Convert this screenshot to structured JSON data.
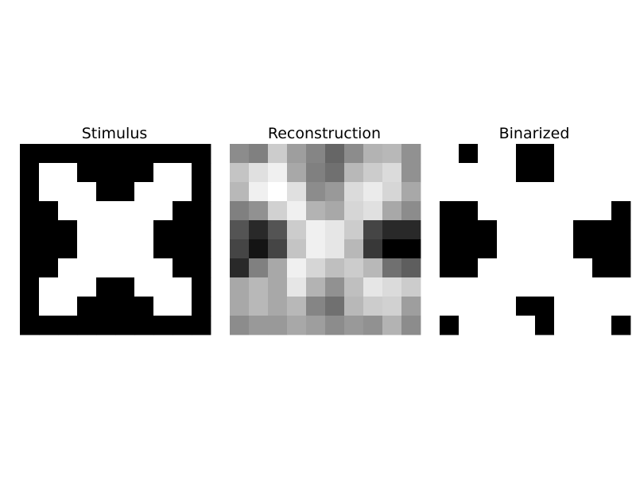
{
  "chart_data": [
    {
      "type": "heatmap",
      "title": "Stimulus",
      "colormap": "gray",
      "value_range": [
        0,
        1
      ],
      "grid": false,
      "axes_visible": false,
      "rows": 10,
      "cols": 10,
      "values": [
        [
          0,
          0,
          0,
          0,
          0,
          0,
          0,
          0,
          0,
          0
        ],
        [
          0,
          1,
          1,
          0,
          0,
          0,
          0,
          1,
          1,
          0
        ],
        [
          0,
          1,
          1,
          1,
          0,
          0,
          1,
          1,
          1,
          0
        ],
        [
          0,
          0,
          1,
          1,
          1,
          1,
          1,
          1,
          0,
          0
        ],
        [
          0,
          0,
          0,
          1,
          1,
          1,
          1,
          0,
          0,
          0
        ],
        [
          0,
          0,
          0,
          1,
          1,
          1,
          1,
          0,
          0,
          0
        ],
        [
          0,
          0,
          1,
          1,
          1,
          1,
          1,
          1,
          0,
          0
        ],
        [
          0,
          1,
          1,
          1,
          0,
          0,
          1,
          1,
          1,
          0
        ],
        [
          0,
          1,
          1,
          0,
          0,
          0,
          0,
          1,
          1,
          0
        ],
        [
          0,
          0,
          0,
          0,
          0,
          0,
          0,
          0,
          0,
          0
        ]
      ]
    },
    {
      "type": "heatmap",
      "title": "Reconstruction",
      "colormap": "gray",
      "value_range": [
        0,
        1
      ],
      "grid": false,
      "axes_visible": false,
      "rows": 10,
      "cols": 10,
      "values": [
        [
          0.55,
          0.5,
          0.8,
          0.62,
          0.52,
          0.4,
          0.55,
          0.7,
          0.72,
          0.57
        ],
        [
          0.77,
          0.88,
          0.94,
          0.66,
          0.5,
          0.44,
          0.72,
          0.8,
          0.86,
          0.57
        ],
        [
          0.72,
          0.94,
          1.0,
          0.88,
          0.55,
          0.6,
          0.86,
          0.92,
          0.84,
          0.66
        ],
        [
          0.5,
          0.57,
          0.82,
          0.94,
          0.7,
          0.66,
          0.84,
          0.88,
          0.66,
          0.55
        ],
        [
          0.33,
          0.16,
          0.33,
          0.8,
          0.94,
          0.9,
          0.8,
          0.27,
          0.16,
          0.16
        ],
        [
          0.27,
          0.08,
          0.27,
          0.77,
          0.94,
          0.9,
          0.72,
          0.22,
          0.0,
          0.0
        ],
        [
          0.16,
          0.5,
          0.66,
          0.94,
          0.84,
          0.75,
          0.8,
          0.72,
          0.44,
          0.37
        ],
        [
          0.66,
          0.72,
          0.66,
          0.9,
          0.7,
          0.57,
          0.75,
          0.9,
          0.86,
          0.8
        ],
        [
          0.66,
          0.72,
          0.66,
          0.72,
          0.52,
          0.44,
          0.72,
          0.8,
          0.82,
          0.62
        ],
        [
          0.55,
          0.6,
          0.6,
          0.66,
          0.62,
          0.55,
          0.6,
          0.57,
          0.7,
          0.55
        ]
      ]
    },
    {
      "type": "heatmap",
      "title": "Binarized",
      "colormap": "gray",
      "value_range": [
        0,
        1
      ],
      "grid": false,
      "axes_visible": false,
      "rows": 10,
      "cols": 10,
      "values": [
        [
          1,
          0,
          1,
          1,
          0,
          0,
          1,
          1,
          1,
          1
        ],
        [
          1,
          1,
          1,
          1,
          0,
          0,
          1,
          1,
          1,
          1
        ],
        [
          1,
          1,
          1,
          1,
          1,
          1,
          1,
          1,
          1,
          1
        ],
        [
          0,
          0,
          1,
          1,
          1,
          1,
          1,
          1,
          1,
          0
        ],
        [
          0,
          0,
          0,
          1,
          1,
          1,
          1,
          0,
          0,
          0
        ],
        [
          0,
          0,
          0,
          1,
          1,
          1,
          1,
          0,
          0,
          0
        ],
        [
          0,
          0,
          1,
          1,
          1,
          1,
          1,
          1,
          0,
          0
        ],
        [
          1,
          1,
          1,
          1,
          1,
          1,
          1,
          1,
          1,
          1
        ],
        [
          1,
          1,
          1,
          1,
          0,
          0,
          1,
          1,
          1,
          1
        ],
        [
          0,
          1,
          1,
          1,
          1,
          0,
          1,
          1,
          1,
          0
        ]
      ]
    }
  ]
}
